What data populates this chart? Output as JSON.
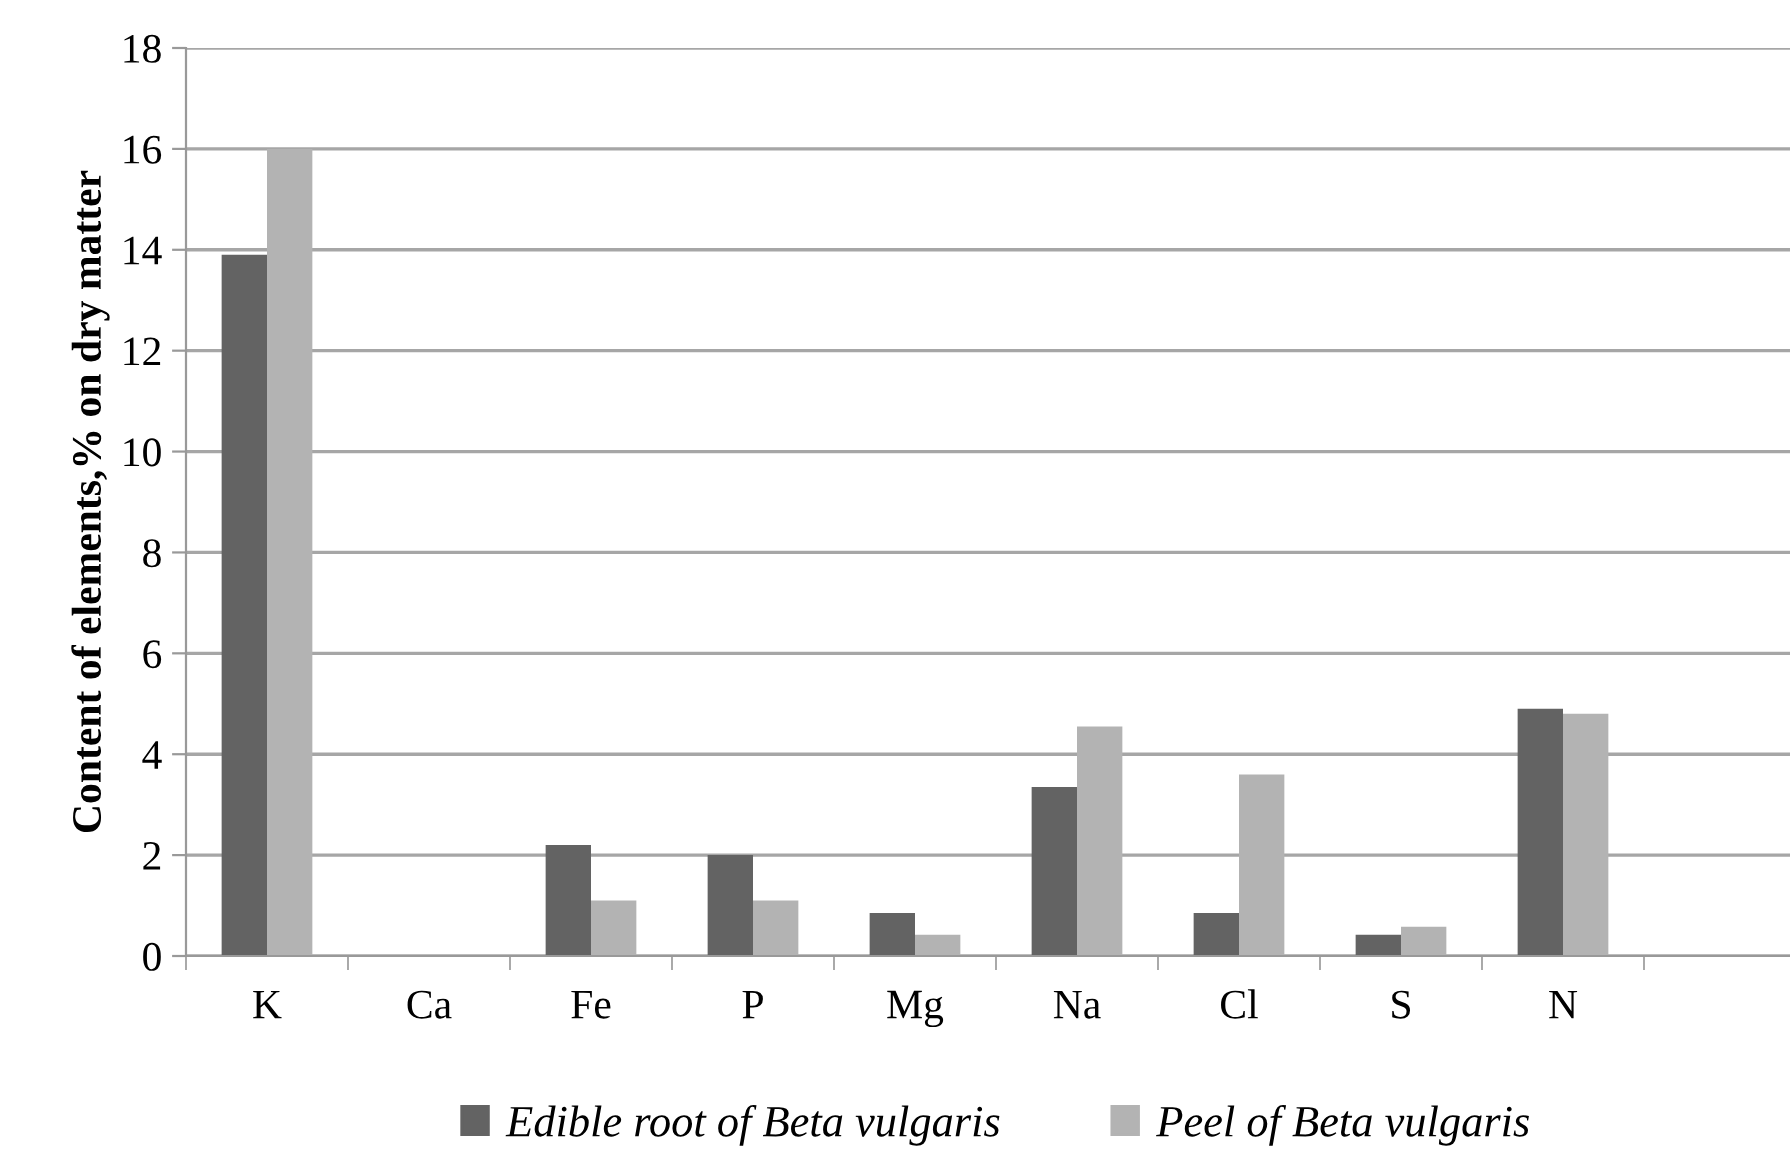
{
  "chart_data": {
    "type": "bar",
    "ylabel": "Content of elements,% on dry matter",
    "categories": [
      "K",
      "Ca",
      "Fe",
      "P",
      "Mg",
      "Na",
      "Cl",
      "S",
      "N",
      null
    ],
    "series": [
      {
        "name": "Edible root of Beta vulgaris",
        "color": "#636363",
        "values": [
          13.9,
          0,
          2.2,
          2.0,
          0.85,
          3.35,
          0.85,
          0.42,
          4.9,
          null
        ]
      },
      {
        "name": "Peel of Beta vulgaris",
        "color": "#b3b3b3",
        "values": [
          16.0,
          0,
          1.1,
          1.1,
          0.42,
          4.55,
          3.6,
          0.58,
          4.8,
          null
        ]
      }
    ],
    "ylim": [
      0,
      18
    ],
    "yticks": [
      0,
      2,
      4,
      6,
      8,
      10,
      12,
      14,
      16,
      18
    ],
    "grid": "y",
    "legend": "bottom"
  }
}
